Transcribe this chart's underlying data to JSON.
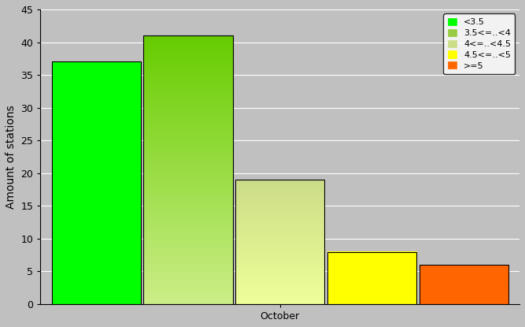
{
  "bars": [
    {
      "label": "<3.5",
      "value": 37,
      "color_top": "#00FF00",
      "color_bottom": "#00FF00"
    },
    {
      "label": "3.5<=..<4",
      "value": 41,
      "color_top": "#66CC00",
      "color_bottom": "#CCEE88"
    },
    {
      "label": "4<=..<4.5",
      "value": 19,
      "color_top": "#CCDD88",
      "color_bottom": "#EEFF99"
    },
    {
      "label": "4.5<=..<5",
      "value": 8,
      "color_top": "#FFFF00",
      "color_bottom": "#FFFF00"
    },
    {
      "label": ">=5",
      "value": 6,
      "color_top": "#FF6600",
      "color_bottom": "#FF6600"
    }
  ],
  "legend_colors": [
    "#00FF00",
    "#99CC44",
    "#CCDD88",
    "#FFFF00",
    "#FF6600"
  ],
  "ylabel": "Amount of stations",
  "xlabel": "October",
  "ylim": [
    0,
    45
  ],
  "yticks": [
    0,
    5,
    10,
    15,
    20,
    25,
    30,
    35,
    40,
    45
  ],
  "background_color": "#C0C0C0",
  "plot_bg_color": "#C0C0C0",
  "legend_fontsize": 8,
  "axis_fontsize": 10,
  "tick_fontsize": 9,
  "bar_width": 0.16,
  "bar_gap": 0.005
}
